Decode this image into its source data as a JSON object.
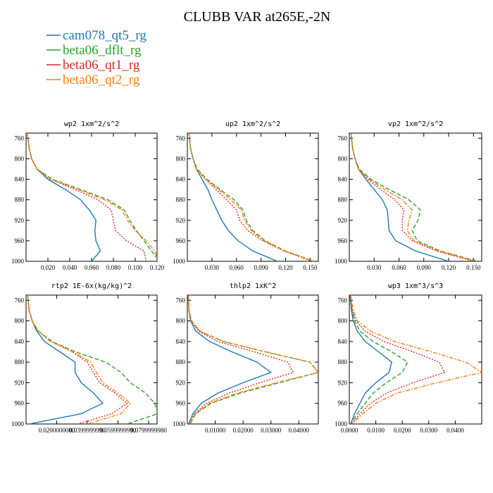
{
  "figure_title": "CLUBB VAR at265E,-2N",
  "colors": {
    "cam078_qt5_rg": "#1f77b4",
    "beta06_dflt_rg": "#2ca02c",
    "beta06_qt1_rg": "#d62728",
    "beta06_qt2_rg": "#ff7f0e"
  },
  "legend": [
    {
      "label": "cam078_qt5_rg",
      "color": "#1f77b4"
    },
    {
      "label": "beta06_dflt_rg",
      "color": "#2ca02c"
    },
    {
      "label": "beta06_qt1_rg",
      "color": "#d62728"
    },
    {
      "label": "beta06_qt2_rg",
      "color": "#ff7f0e"
    }
  ],
  "chart_data": [
    {
      "type": "line",
      "title": "wp2  1xm^2/s^2",
      "xlim": [
        0.0,
        0.12
      ],
      "ylim": [
        1000,
        750
      ],
      "xticks": [
        "0.020",
        "0.040",
        "0.060",
        "0.080",
        "0.100",
        "0.120"
      ],
      "xtick_values": [
        0.02,
        0.04,
        0.06,
        0.08,
        0.1,
        0.12
      ],
      "yticks": [
        760,
        800,
        840,
        880,
        920,
        960,
        1000
      ],
      "y": [
        750,
        780,
        800,
        820,
        840,
        860,
        880,
        900,
        920,
        940,
        960,
        980,
        1000
      ],
      "series": [
        {
          "name": "cam078_qt5_rg",
          "dash": "solid",
          "values": [
            0.001,
            0.003,
            0.005,
            0.01,
            0.02,
            0.036,
            0.05,
            0.058,
            0.064,
            0.063,
            0.064,
            0.068,
            0.06
          ]
        },
        {
          "name": "beta06_dflt_rg",
          "dash": "dashed",
          "values": [
            0.001,
            0.003,
            0.005,
            0.01,
            0.024,
            0.05,
            0.075,
            0.09,
            0.095,
            0.101,
            0.108,
            0.115,
            0.122
          ]
        },
        {
          "name": "beta06_qt1_rg",
          "dash": "dotted",
          "values": [
            0.001,
            0.003,
            0.005,
            0.01,
            0.022,
            0.045,
            0.066,
            0.078,
            0.08,
            0.082,
            0.092,
            0.108,
            0.11
          ]
        },
        {
          "name": "beta06_qt2_rg",
          "dash": "dashdot",
          "values": [
            0.001,
            0.003,
            0.005,
            0.01,
            0.023,
            0.048,
            0.072,
            0.088,
            0.093,
            0.1,
            0.11,
            0.118,
            0.121
          ]
        }
      ]
    },
    {
      "type": "line",
      "title": "up2  1xm^2/s^2",
      "xlim": [
        0.0,
        0.16
      ],
      "ylim": [
        1000,
        750
      ],
      "xticks": [
        "0.030",
        "0.060",
        "0.090",
        "0.120",
        "0.150"
      ],
      "xtick_values": [
        0.03,
        0.06,
        0.09,
        0.12,
        0.15
      ],
      "yticks": [
        760,
        800,
        840,
        880,
        920,
        960,
        1000
      ],
      "y": [
        750,
        780,
        800,
        820,
        840,
        860,
        880,
        900,
        920,
        940,
        960,
        980,
        1000
      ],
      "series": [
        {
          "name": "cam078_qt5_rg",
          "dash": "solid",
          "values": [
            0.002,
            0.004,
            0.007,
            0.011,
            0.018,
            0.025,
            0.03,
            0.036,
            0.042,
            0.05,
            0.062,
            0.08,
            0.11
          ]
        },
        {
          "name": "beta06_dflt_rg",
          "dash": "dashed",
          "values": [
            0.002,
            0.004,
            0.007,
            0.012,
            0.024,
            0.04,
            0.057,
            0.068,
            0.072,
            0.08,
            0.095,
            0.12,
            0.155
          ]
        },
        {
          "name": "beta06_qt1_rg",
          "dash": "dotted",
          "values": [
            0.002,
            0.004,
            0.007,
            0.011,
            0.022,
            0.035,
            0.048,
            0.06,
            0.064,
            0.074,
            0.092,
            0.118,
            0.152
          ]
        },
        {
          "name": "beta06_qt2_rg",
          "dash": "dashdot",
          "values": [
            0.002,
            0.004,
            0.007,
            0.011,
            0.023,
            0.038,
            0.053,
            0.066,
            0.07,
            0.078,
            0.094,
            0.119,
            0.154
          ]
        }
      ]
    },
    {
      "type": "line",
      "title": "vp2  1xm^2/s^2",
      "xlim": [
        0.0,
        0.16
      ],
      "ylim": [
        1000,
        750
      ],
      "xticks": [
        "0.030",
        "0.060",
        "0.090",
        "0.120",
        "0.150"
      ],
      "xtick_values": [
        0.03,
        0.06,
        0.09,
        0.12,
        0.15
      ],
      "yticks": [
        760,
        800,
        840,
        880,
        920,
        960,
        1000
      ],
      "y": [
        750,
        780,
        800,
        820,
        840,
        860,
        880,
        900,
        920,
        940,
        960,
        980,
        1000
      ],
      "series": [
        {
          "name": "cam078_qt5_rg",
          "dash": "solid",
          "values": [
            0.002,
            0.004,
            0.007,
            0.011,
            0.02,
            0.03,
            0.04,
            0.046,
            0.047,
            0.048,
            0.056,
            0.08,
            0.12
          ]
        },
        {
          "name": "beta06_dflt_rg",
          "dash": "dashed",
          "values": [
            0.002,
            0.004,
            0.007,
            0.012,
            0.026,
            0.048,
            0.072,
            0.086,
            0.083,
            0.076,
            0.082,
            0.11,
            0.155
          ]
        },
        {
          "name": "beta06_qt1_rg",
          "dash": "dotted",
          "values": [
            0.002,
            0.004,
            0.007,
            0.011,
            0.022,
            0.038,
            0.055,
            0.066,
            0.064,
            0.064,
            0.076,
            0.105,
            0.15
          ]
        },
        {
          "name": "beta06_qt2_rg",
          "dash": "dashdot",
          "values": [
            0.002,
            0.004,
            0.007,
            0.011,
            0.024,
            0.043,
            0.064,
            0.076,
            0.072,
            0.07,
            0.078,
            0.108,
            0.153
          ]
        }
      ]
    },
    {
      "type": "line",
      "title": "rtp2  1E-6x(kg/kg)^2",
      "xlim": [
        0.0,
        8.55e-05
      ],
      "ylim": [
        1000,
        750
      ],
      "xticks": [
        "0.0200000000",
        "0.0399999990",
        "0.0599999990",
        "0.0799999980"
      ],
      "xtick_values": [
        2e-05,
        4e-05,
        6e-05,
        8e-05
      ],
      "yticks": [
        760,
        800,
        840,
        880,
        920,
        960,
        1000
      ],
      "y": [
        750,
        780,
        800,
        820,
        840,
        860,
        880,
        900,
        920,
        940,
        960,
        980,
        1000
      ],
      "series": [
        {
          "name": "cam078_qt5_rg",
          "dash": "solid",
          "values": [
            1e-06,
            2e-06,
            4e-06,
            7e-06,
            1.2e-05,
            2.2e-05,
            3.2e-05,
            3.2e-05,
            3.6e-05,
            4.4e-05,
            5e-05,
            3.6e-05,
            2e-06
          ]
        },
        {
          "name": "beta06_dflt_rg",
          "dash": "dashed",
          "values": [
            1e-06,
            2e-06,
            4e-06,
            8e-06,
            1.7e-05,
            3.2e-05,
            5.2e-05,
            6.2e-05,
            6.8e-05,
            7.8e-05,
            8.4e-05,
            8.6e-05,
            6.6e-05
          ]
        },
        {
          "name": "beta06_qt1_rg",
          "dash": "dotted",
          "values": [
            1e-06,
            2e-06,
            4e-06,
            8e-06,
            1.6e-05,
            3e-05,
            4e-05,
            4.4e-05,
            4.8e-05,
            5.8e-05,
            6.6e-05,
            5.6e-05,
            3.4e-05
          ]
        },
        {
          "name": "beta06_qt2_rg",
          "dash": "dashdot",
          "values": [
            1e-06,
            2e-06,
            4e-06,
            8e-06,
            1.6e-05,
            3.1e-05,
            4.2e-05,
            4.6e-05,
            5e-05,
            6e-05,
            6.8e-05,
            6.2e-05,
            4e-05
          ]
        }
      ]
    },
    {
      "type": "line",
      "title": "thlp2  1xK^2",
      "xlim": [
        0.0,
        0.047
      ],
      "ylim": [
        1000,
        750
      ],
      "xticks": [
        "0.01000",
        "0.02000",
        "0.03000",
        "0.04000"
      ],
      "xtick_values": [
        0.01,
        0.02,
        0.03,
        0.04
      ],
      "yticks": [
        760,
        800,
        840,
        880,
        920,
        960,
        1000
      ],
      "y": [
        750,
        780,
        800,
        820,
        840,
        860,
        880,
        900,
        920,
        940,
        960,
        980,
        1000
      ],
      "series": [
        {
          "name": "cam078_qt5_rg",
          "dash": "solid",
          "values": [
            0.0003,
            0.0006,
            0.0012,
            0.003,
            0.008,
            0.016,
            0.025,
            0.03,
            0.02,
            0.011,
            0.005,
            0.002,
            0.0005
          ]
        },
        {
          "name": "beta06_dflt_rg",
          "dash": "dashed",
          "values": [
            0.0003,
            0.0006,
            0.0015,
            0.0045,
            0.013,
            0.028,
            0.044,
            0.047,
            0.033,
            0.019,
            0.0085,
            0.003,
            0.001
          ]
        },
        {
          "name": "beta06_qt1_rg",
          "dash": "dotted",
          "values": [
            0.0003,
            0.0006,
            0.0013,
            0.004,
            0.011,
            0.024,
            0.036,
            0.038,
            0.026,
            0.015,
            0.007,
            0.0025,
            0.0008
          ]
        },
        {
          "name": "beta06_qt2_rg",
          "dash": "dashdot",
          "values": [
            0.0003,
            0.0006,
            0.0015,
            0.0045,
            0.013,
            0.028,
            0.044,
            0.047,
            0.032,
            0.018,
            0.008,
            0.0028,
            0.0009
          ]
        }
      ]
    },
    {
      "type": "line",
      "title": "wp3  1xm^3/s^3",
      "xlim": [
        0.0,
        0.05
      ],
      "ylim": [
        1000,
        750
      ],
      "xticks": [
        "0.0000",
        "0.0100",
        "0.0200",
        "0.0300",
        "0.0400"
      ],
      "xtick_values": [
        0.0,
        0.01,
        0.02,
        0.03,
        0.04
      ],
      "yticks": [
        760,
        800,
        840,
        880,
        920,
        960,
        1000
      ],
      "y": [
        750,
        780,
        800,
        820,
        840,
        860,
        880,
        900,
        920,
        940,
        960,
        980,
        1000
      ],
      "series": [
        {
          "name": "cam078_qt5_rg",
          "dash": "solid",
          "values": [
            0.0003,
            0.0008,
            0.0015,
            0.003,
            0.006,
            0.011,
            0.016,
            0.015,
            0.01,
            0.006,
            0.004,
            0.002,
            0.0005
          ]
        },
        {
          "name": "beta06_dflt_rg",
          "dash": "dashed",
          "values": [
            0.0003,
            0.001,
            0.002,
            0.004,
            0.009,
            0.016,
            0.022,
            0.02,
            0.014,
            0.009,
            0.006,
            0.003,
            0.0005
          ]
        },
        {
          "name": "beta06_qt1_rg",
          "dash": "dotted",
          "values": [
            0.0004,
            0.0012,
            0.0025,
            0.006,
            0.013,
            0.024,
            0.034,
            0.036,
            0.024,
            0.014,
            0.008,
            0.004,
            0.0008
          ]
        },
        {
          "name": "beta06_qt2_rg",
          "dash": "dashdot",
          "values": [
            0.0005,
            0.0015,
            0.003,
            0.008,
            0.017,
            0.031,
            0.044,
            0.05,
            0.033,
            0.018,
            0.01,
            0.005,
            0.001
          ]
        }
      ]
    }
  ]
}
